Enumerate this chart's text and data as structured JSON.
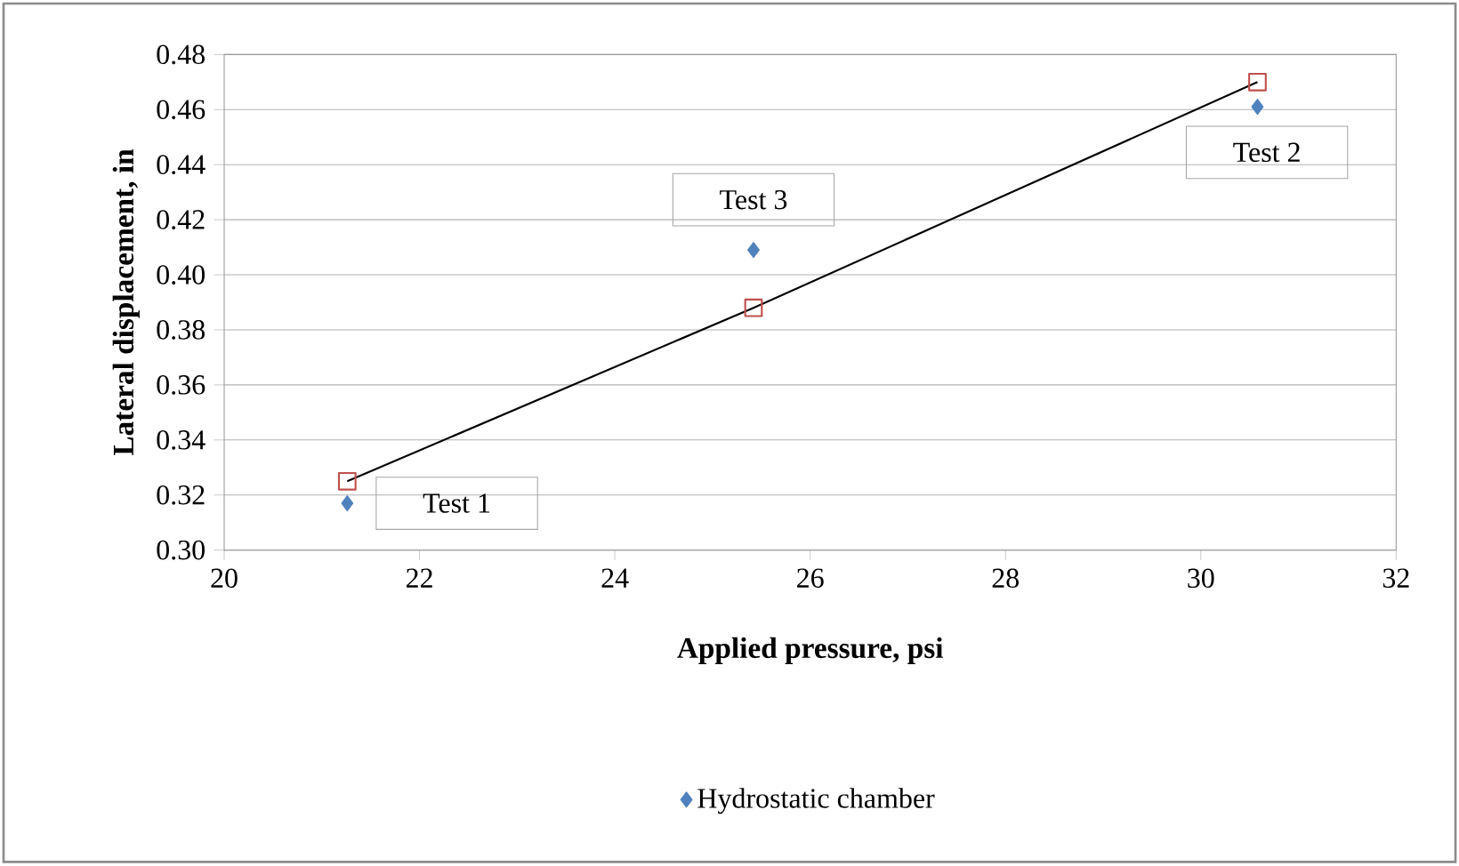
{
  "chart_data": {
    "type": "scatter",
    "xlabel": "Applied pressure, psi",
    "ylabel": "Lateral displacement, in",
    "x": [
      21.26,
      25.42,
      30.58
    ],
    "series": [
      {
        "name": "Hydrostatic chamber",
        "color": "#4f81bd",
        "marker": "diamond",
        "values": [
          0.317,
          0.409,
          0.461
        ]
      },
      {
        "type": "line",
        "color": "#c0504d",
        "marker": "square",
        "line_style": "solid",
        "values": [
          0.325,
          0.388,
          0.47
        ]
      }
    ],
    "annotations": [
      {
        "text": "Test 1",
        "x": 21.26,
        "y": 0.317
      },
      {
        "text": "Test 3",
        "x": 25.42,
        "y": 0.409
      },
      {
        "text": "Test 2",
        "x": 30.58,
        "y": 0.461
      }
    ],
    "xlim": [
      20,
      32
    ],
    "xticks": [
      20,
      22,
      24,
      26,
      28,
      30,
      32
    ],
    "ylim": [
      0.3,
      0.48
    ],
    "yticks": [
      {
        "value": 0.3,
        "label": "0.30"
      },
      {
        "value": 0.32,
        "label": "0.32"
      },
      {
        "value": 0.34,
        "label": "0.34"
      },
      {
        "value": 0.36,
        "label": "0.36"
      },
      {
        "value": 0.38,
        "label": "0.38"
      },
      {
        "value": 0.4,
        "label": "0.40"
      },
      {
        "value": 0.42,
        "label": "0.42"
      },
      {
        "value": 0.44,
        "label": "0.44"
      },
      {
        "value": 0.46,
        "label": "0.46"
      },
      {
        "value": 0.48,
        "label": "0.48"
      }
    ],
    "grid": "y",
    "legend": "bottom"
  }
}
